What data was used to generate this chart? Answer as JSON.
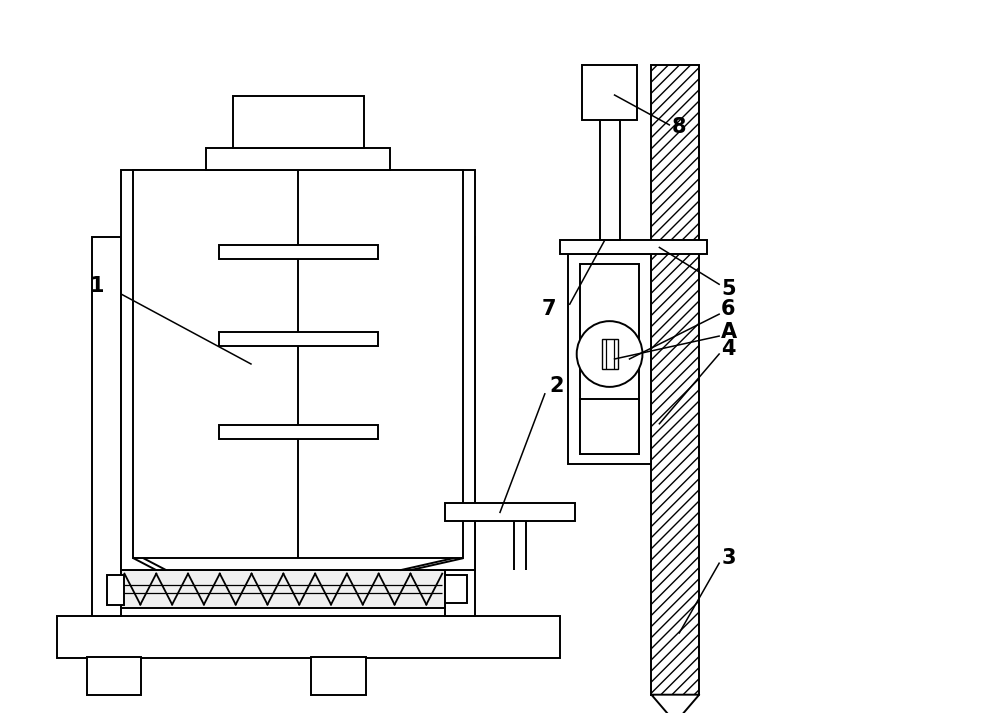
{
  "bg_color": "#ffffff",
  "line_color": "#000000",
  "label_color": "#000000",
  "label_fontsize": 15,
  "fig_width": 10.0,
  "fig_height": 7.14
}
